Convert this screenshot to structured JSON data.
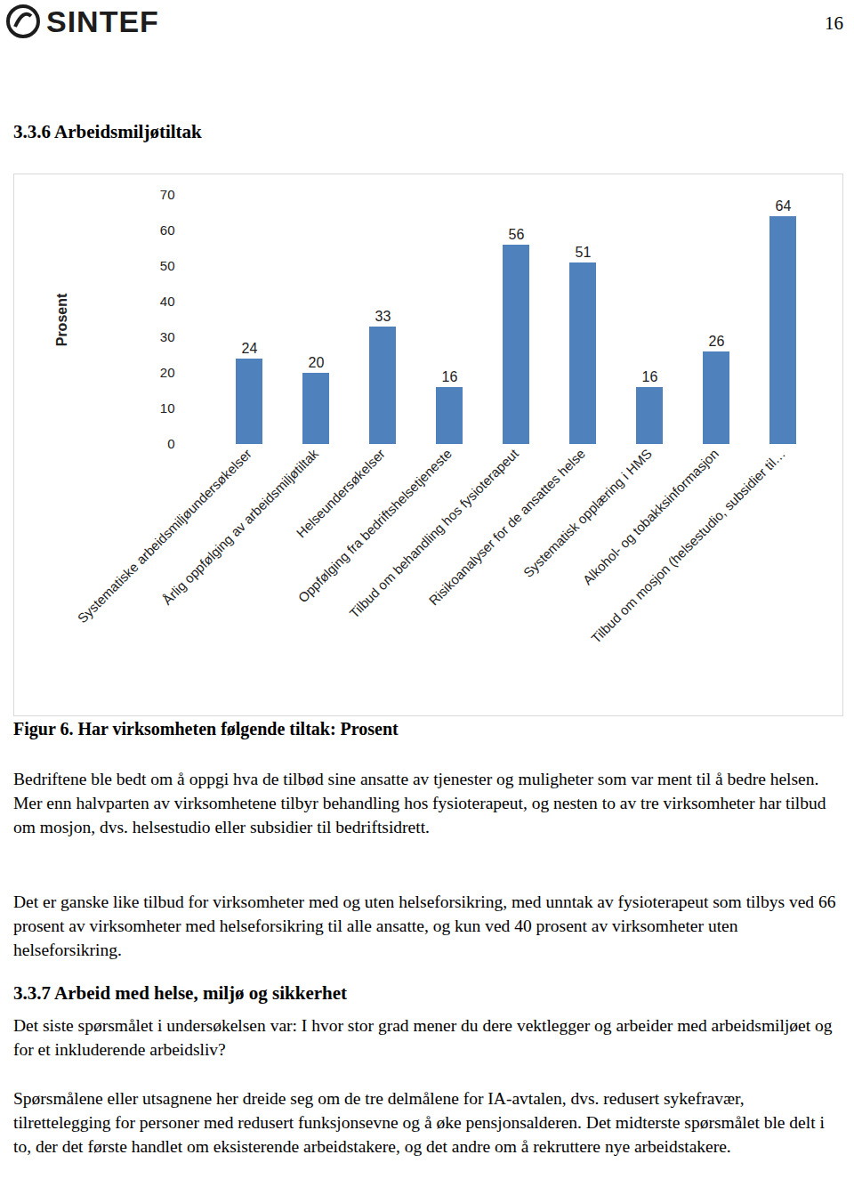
{
  "header": {
    "logo": "SINTEF",
    "page_number": "16"
  },
  "section_heading": "3.3.6 Arbeidsmiljøtiltak",
  "chart_data": {
    "type": "bar",
    "categories": [
      "Systematiske arbeidsmiljøundersøkelser",
      "Årlig oppfølging av arbeidsmiljøtiltak",
      "Helseundersøkelser",
      "Oppfølging fra bedriftshelsetjeneste",
      "Tilbud om behandling hos fysioterapeut",
      "Risikoanalyser for de ansattes helse",
      "Systematisk opplæring i HMS",
      "Alkohol- og tobakksinformasjon",
      "Tilbud om mosjon (helsestudio, subsidier til…"
    ],
    "values": [
      24,
      20,
      33,
      16,
      56,
      51,
      16,
      26,
      64
    ],
    "color": "#4f81bd",
    "y_label": "Prosent",
    "ylim": [
      0,
      70
    ],
    "yticks": [
      0,
      10,
      20,
      30,
      40,
      50,
      60,
      70
    ],
    "grid": false,
    "data_labels": true
  },
  "caption": "Figur 6. Har virksomheten følgende tiltak: Prosent",
  "paragraphs_1": [
    "Bedriftene ble bedt om å oppgi hva de tilbød sine ansatte av tjenester og muligheter som var ment til å bedre helsen. Mer enn halvparten av virksomhetene tilbyr behandling hos fysioterapeut, og nesten to av tre virksomheter har tilbud om mosjon, dvs. helsestudio eller subsidier til bedriftsidrett.",
    "Det er ganske like tilbud for virksomheter med og uten helseforsikring, med unntak av fysioterapeut som tilbys ved 66 prosent av virksomheter med helseforsikring til alle ansatte, og kun ved 40 prosent av virksomheter uten helseforsikring."
  ],
  "section_heading_2": "3.3.7 Arbeid med helse, miljø og sikkerhet",
  "paragraphs_2": [
    "Det siste spørsmålet i undersøkelsen var: I hvor stor grad mener du dere vektlegger og arbeider med arbeidsmiljøet og for et inkluderende arbeidsliv?",
    "Spørsmålene eller utsagnene her dreide seg om de tre delmålene for IA-avtalen, dvs. redusert sykefravær, tilrettelegging for personer med redusert funksjonsevne og å øke pensjonsalderen. Det midterste spørsmålet ble delt i to, der det første handlet om eksisterende arbeidstakere, og det andre om å rekruttere nye arbeidstakere."
  ]
}
